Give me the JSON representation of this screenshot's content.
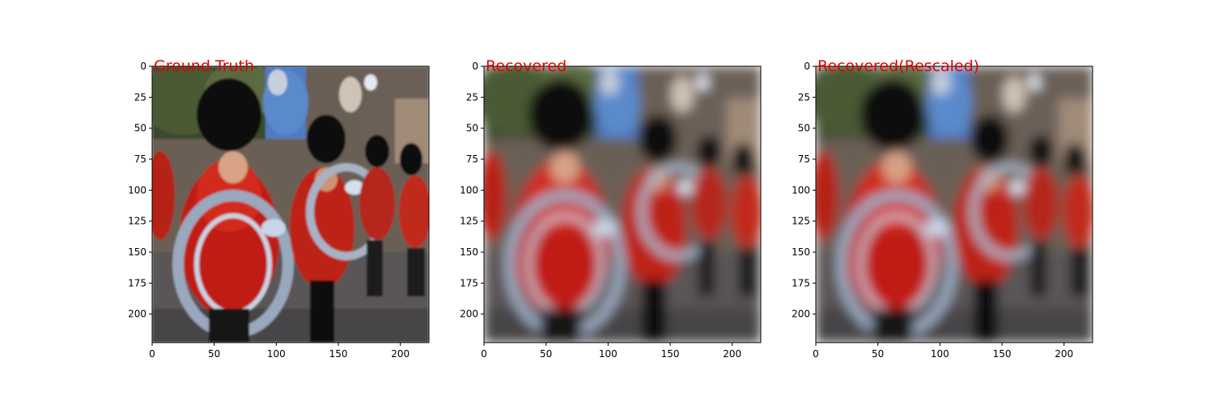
{
  "title_color": "#e00000",
  "chart_data": [
    {
      "type": "image",
      "title": "Ground Truth",
      "xlim": [
        0,
        223
      ],
      "ylim": [
        223,
        0
      ],
      "xticks": [
        0,
        50,
        100,
        150,
        200
      ],
      "yticks": [
        0,
        25,
        50,
        75,
        100,
        125,
        150,
        175,
        200
      ],
      "image_style": "sharp"
    },
    {
      "type": "image",
      "title": "Recovered",
      "xlim": [
        0,
        223
      ],
      "ylim": [
        223,
        0
      ],
      "xticks": [
        0,
        50,
        100,
        150,
        200
      ],
      "yticks": [
        0,
        25,
        50,
        75,
        100,
        125,
        150,
        175,
        200
      ],
      "image_style": "blurred"
    },
    {
      "type": "image",
      "title": "Recovered(Rescaled)",
      "xlim": [
        0,
        223
      ],
      "ylim": [
        223,
        0
      ],
      "xticks": [
        0,
        50,
        100,
        150,
        200
      ],
      "yticks": [
        0,
        25,
        50,
        75,
        100,
        125,
        150,
        175,
        200
      ],
      "image_style": "blurred"
    }
  ]
}
